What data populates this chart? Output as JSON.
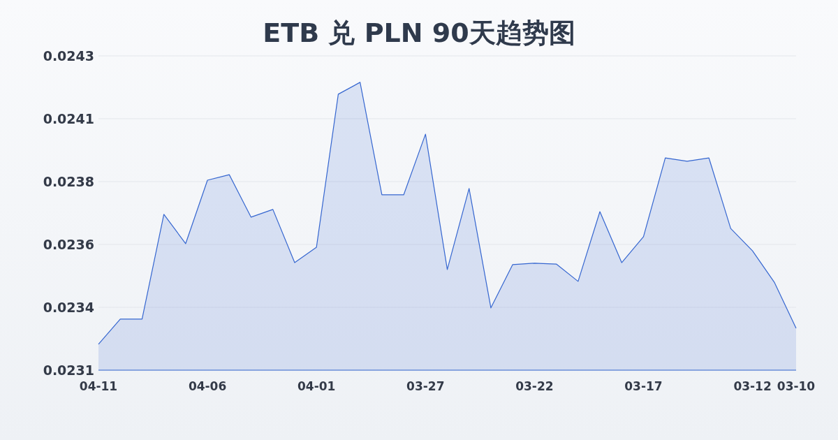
{
  "chart_data": {
    "type": "area",
    "title": "ETB 兑 PLN 90天趋势图",
    "categories": [
      "04-11",
      null,
      null,
      null,
      null,
      "04-06",
      null,
      null,
      null,
      null,
      "04-01",
      null,
      null,
      null,
      null,
      "03-27",
      null,
      null,
      null,
      null,
      "03-22",
      null,
      null,
      null,
      null,
      "03-17",
      null,
      null,
      null,
      null,
      "03-12",
      null,
      "03-10"
    ],
    "series": [
      {
        "color": "#3566d0",
        "values": [
          0.023234,
          0.023325,
          0.023325,
          0.023705,
          0.023599,
          0.023829,
          0.023849,
          0.023695,
          0.023723,
          0.02353,
          0.023586,
          0.024141,
          0.024184,
          0.023776,
          0.023776,
          0.023996,
          0.023505,
          0.023799,
          0.023366,
          0.023523,
          0.023528,
          0.023525,
          0.023462,
          0.023715,
          0.02353,
          0.023624,
          0.02391,
          0.023898,
          0.02391,
          0.023654,
          0.023573,
          0.023459,
          0.023292
        ]
      }
    ],
    "ylim": [
      0.02314,
      0.02428
    ],
    "yticks": [
      {
        "value": 0.02314,
        "label": "0.0231"
      },
      {
        "value": 0.023368,
        "label": "0.0234"
      },
      {
        "value": 0.023596,
        "label": "0.0236"
      },
      {
        "value": 0.023824,
        "label": "0.0238"
      },
      {
        "value": 0.024052,
        "label": "0.0241"
      },
      {
        "value": 0.02428,
        "label": "0.0243"
      }
    ],
    "grid": "y"
  }
}
